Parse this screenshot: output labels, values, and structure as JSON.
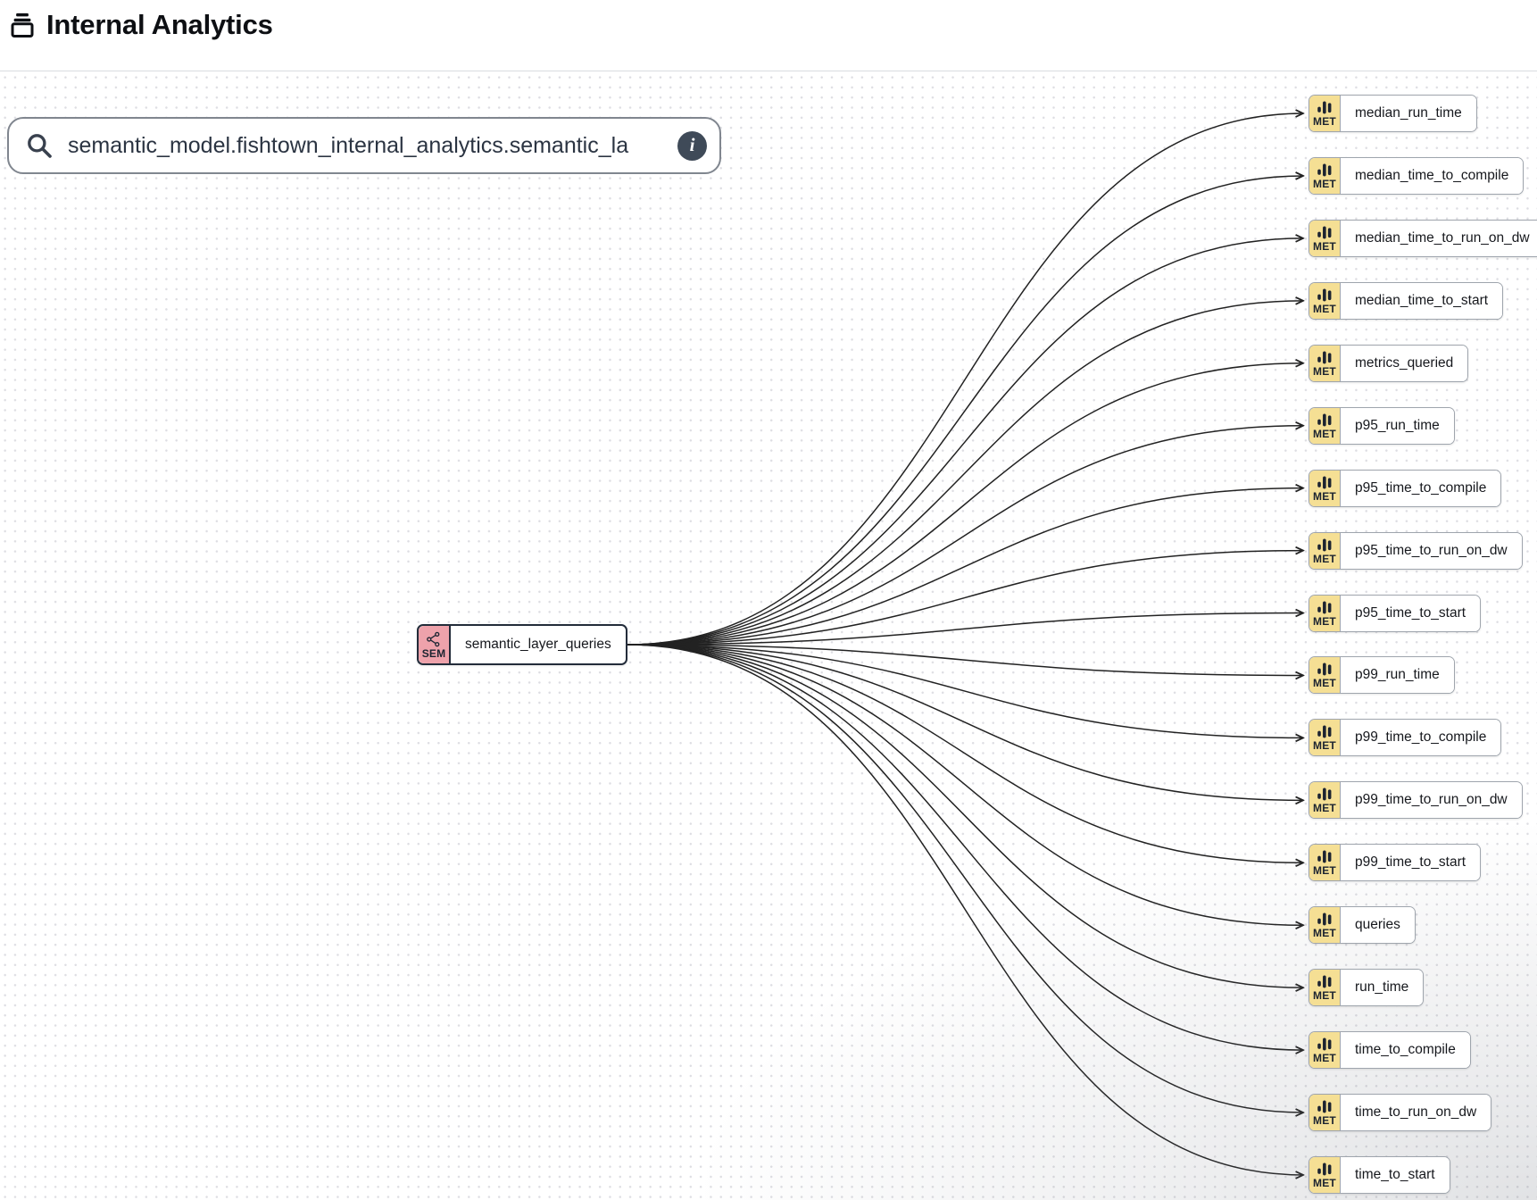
{
  "header": {
    "title": "Internal Analytics"
  },
  "search": {
    "value": "semantic_model.fishtown_internal_analytics.semantic_la",
    "info_label": "i"
  },
  "graph": {
    "source_node": {
      "badge": "SEM",
      "label": "semantic_layer_queries"
    },
    "metric_badge": "MET",
    "metric_nodes": [
      "median_run_time",
      "median_time_to_compile",
      "median_time_to_run_on_dw",
      "median_time_to_start",
      "metrics_queried",
      "p95_run_time",
      "p95_time_to_compile",
      "p95_time_to_run_on_dw",
      "p95_time_to_start",
      "p99_run_time",
      "p99_time_to_compile",
      "p99_time_to_run_on_dw",
      "p99_time_to_start",
      "queries",
      "run_time",
      "time_to_compile",
      "time_to_run_on_dw",
      "time_to_start"
    ]
  },
  "colors": {
    "met_badge": "#f5df94",
    "sem_badge": "#eea2ab",
    "edge": "#222222"
  }
}
